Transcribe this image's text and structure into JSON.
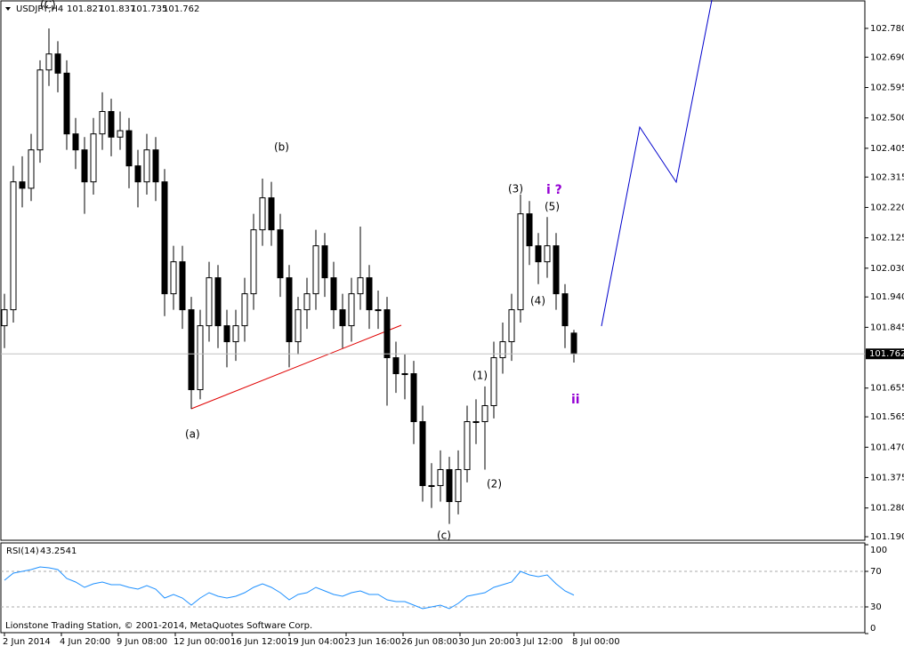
{
  "chart_data": {
    "type": "candlestick",
    "symbol": "USDJPY,H4",
    "candles": [
      [
        101.85,
        101.95,
        101.78,
        101.9
      ],
      [
        101.9,
        102.35,
        101.86,
        102.3
      ],
      [
        102.3,
        102.38,
        102.22,
        102.28
      ],
      [
        102.28,
        102.45,
        102.24,
        102.4
      ],
      [
        102.4,
        102.68,
        102.36,
        102.65
      ],
      [
        102.65,
        102.78,
        102.6,
        102.7
      ],
      [
        102.7,
        102.74,
        102.58,
        102.64
      ],
      [
        102.64,
        102.68,
        102.4,
        102.45
      ],
      [
        102.45,
        102.5,
        102.34,
        102.4
      ],
      [
        102.4,
        102.44,
        102.2,
        102.3
      ],
      [
        102.3,
        102.5,
        102.26,
        102.45
      ],
      [
        102.45,
        102.58,
        102.4,
        102.52
      ],
      [
        102.52,
        102.56,
        102.38,
        102.44
      ],
      [
        102.44,
        102.52,
        102.4,
        102.46
      ],
      [
        102.46,
        102.5,
        102.28,
        102.35
      ],
      [
        102.35,
        102.4,
        102.22,
        102.3
      ],
      [
        102.3,
        102.45,
        102.26,
        102.4
      ],
      [
        102.4,
        102.44,
        102.24,
        102.3
      ],
      [
        102.3,
        102.34,
        101.88,
        101.95
      ],
      [
        101.95,
        102.1,
        101.9,
        102.05
      ],
      [
        102.05,
        102.1,
        101.84,
        101.9
      ],
      [
        101.9,
        101.94,
        101.59,
        101.65
      ],
      [
        101.65,
        101.9,
        101.62,
        101.85
      ],
      [
        101.85,
        102.05,
        101.8,
        102.0
      ],
      [
        102.0,
        102.04,
        101.78,
        101.85
      ],
      [
        101.85,
        101.9,
        101.72,
        101.8
      ],
      [
        101.8,
        101.9,
        101.74,
        101.85
      ],
      [
        101.85,
        102.0,
        101.8,
        101.95
      ],
      [
        101.95,
        102.2,
        101.9,
        102.15
      ],
      [
        102.15,
        102.31,
        102.1,
        102.25
      ],
      [
        102.25,
        102.3,
        102.1,
        102.15
      ],
      [
        102.15,
        102.2,
        101.94,
        102.0
      ],
      [
        102.0,
        102.04,
        101.72,
        101.8
      ],
      [
        101.8,
        101.94,
        101.76,
        101.9
      ],
      [
        101.9,
        102.0,
        101.84,
        101.95
      ],
      [
        101.95,
        102.15,
        101.9,
        102.1
      ],
      [
        102.1,
        102.14,
        101.94,
        102.0
      ],
      [
        102.0,
        102.05,
        101.84,
        101.9
      ],
      [
        101.9,
        101.95,
        101.78,
        101.85
      ],
      [
        101.85,
        102.0,
        101.8,
        101.95
      ],
      [
        101.95,
        102.16,
        101.9,
        102.0
      ],
      [
        102.0,
        102.04,
        101.84,
        101.9
      ],
      [
        101.9,
        101.96,
        101.84,
        101.9
      ],
      [
        101.9,
        101.94,
        101.6,
        101.75
      ],
      [
        101.75,
        101.8,
        101.64,
        101.7
      ],
      [
        101.7,
        101.76,
        101.62,
        101.7
      ],
      [
        101.7,
        101.74,
        101.48,
        101.55
      ],
      [
        101.55,
        101.6,
        101.3,
        101.35
      ],
      [
        101.35,
        101.42,
        101.28,
        101.35
      ],
      [
        101.35,
        101.46,
        101.3,
        101.4
      ],
      [
        101.4,
        101.44,
        101.23,
        101.3
      ],
      [
        101.3,
        101.46,
        101.26,
        101.4
      ],
      [
        101.4,
        101.6,
        101.36,
        101.55
      ],
      [
        101.55,
        101.62,
        101.48,
        101.55
      ],
      [
        101.55,
        101.66,
        101.4,
        101.6
      ],
      [
        101.6,
        101.8,
        101.56,
        101.75
      ],
      [
        101.75,
        101.86,
        101.7,
        101.8
      ],
      [
        101.8,
        101.95,
        101.74,
        101.9
      ],
      [
        101.9,
        102.26,
        101.86,
        102.2
      ],
      [
        102.2,
        102.24,
        102.04,
        102.1
      ],
      [
        102.1,
        102.14,
        101.98,
        102.05
      ],
      [
        102.05,
        102.19,
        102.0,
        102.1
      ],
      [
        102.1,
        102.14,
        101.9,
        101.95
      ],
      [
        101.95,
        101.98,
        101.78,
        101.85
      ],
      [
        101.827,
        101.837,
        101.735,
        101.762
      ]
    ],
    "ylim": [
      101.179,
      102.866
    ],
    "yticks": [
      {
        "value": 102.78,
        "label": "102.780"
      },
      {
        "value": 102.69,
        "label": "102.690"
      },
      102.595,
      {
        "value": 102.5,
        "label": "102.500"
      },
      102.405,
      102.315,
      {
        "value": 102.22,
        "label": "102.220"
      },
      102.125,
      {
        "value": 102.03,
        "label": "102.030"
      },
      {
        "value": 101.94,
        "label": "101.940"
      },
      101.845,
      101.655,
      101.565,
      {
        "value": 101.47,
        "label": "101.470"
      },
      101.375,
      {
        "value": 101.28,
        "label": "101.280"
      },
      {
        "value": 101.19,
        "label": "101.190"
      }
    ],
    "xticks": [
      {
        "value": 0,
        "label": "2 Jun 2014"
      },
      {
        "value": 6.4,
        "label": "4 Jun 20:00"
      },
      {
        "value": 12.8,
        "label": "9 Jun 08:00"
      },
      {
        "value": 19.2,
        "label": "12 Jun 00:00"
      },
      {
        "value": 25.6,
        "label": "16 Jun 12:00"
      },
      {
        "value": 32,
        "label": "19 Jun 04:00"
      },
      {
        "value": 38.4,
        "label": "23 Jun 16:00"
      },
      {
        "value": 44.8,
        "label": "26 Jun 08:00"
      },
      {
        "value": 51.2,
        "label": "30 Jun 20:00"
      },
      {
        "value": 57.6,
        "label": "3 Jul 12:00"
      },
      {
        "value": 64,
        "label": "8 Jul 00:00"
      }
    ],
    "annotations": [
      "(C)",
      "(b)",
      "(a)",
      "(c)",
      "(1)",
      "(2)",
      "(3)",
      "(4)",
      "(5)",
      "i ?",
      "ii"
    ],
    "indicator": {
      "name": "RSI(14)",
      "color": "#1e90ff",
      "values": [
        60,
        68,
        70,
        72,
        75,
        74,
        72,
        62,
        58,
        52,
        56,
        58,
        55,
        55,
        52,
        50,
        54,
        50,
        40,
        44,
        40,
        32,
        40,
        46,
        42,
        40,
        42,
        46,
        52,
        56,
        52,
        46,
        38,
        44,
        46,
        52,
        48,
        44,
        42,
        46,
        48,
        44,
        44,
        38,
        36,
        36,
        32,
        28,
        30,
        32,
        28,
        34,
        42,
        44,
        46,
        52,
        55,
        58,
        70,
        66,
        64,
        66,
        56,
        48,
        43.2541
      ],
      "ylim": [
        0,
        100
      ],
      "yticks": [
        0,
        30,
        70,
        100
      ],
      "levels": [
        30,
        70
      ]
    },
    "footer": "Lionstone Trading Station, © 2001-2014, MetaQuotes Software Corp."
  }
}
